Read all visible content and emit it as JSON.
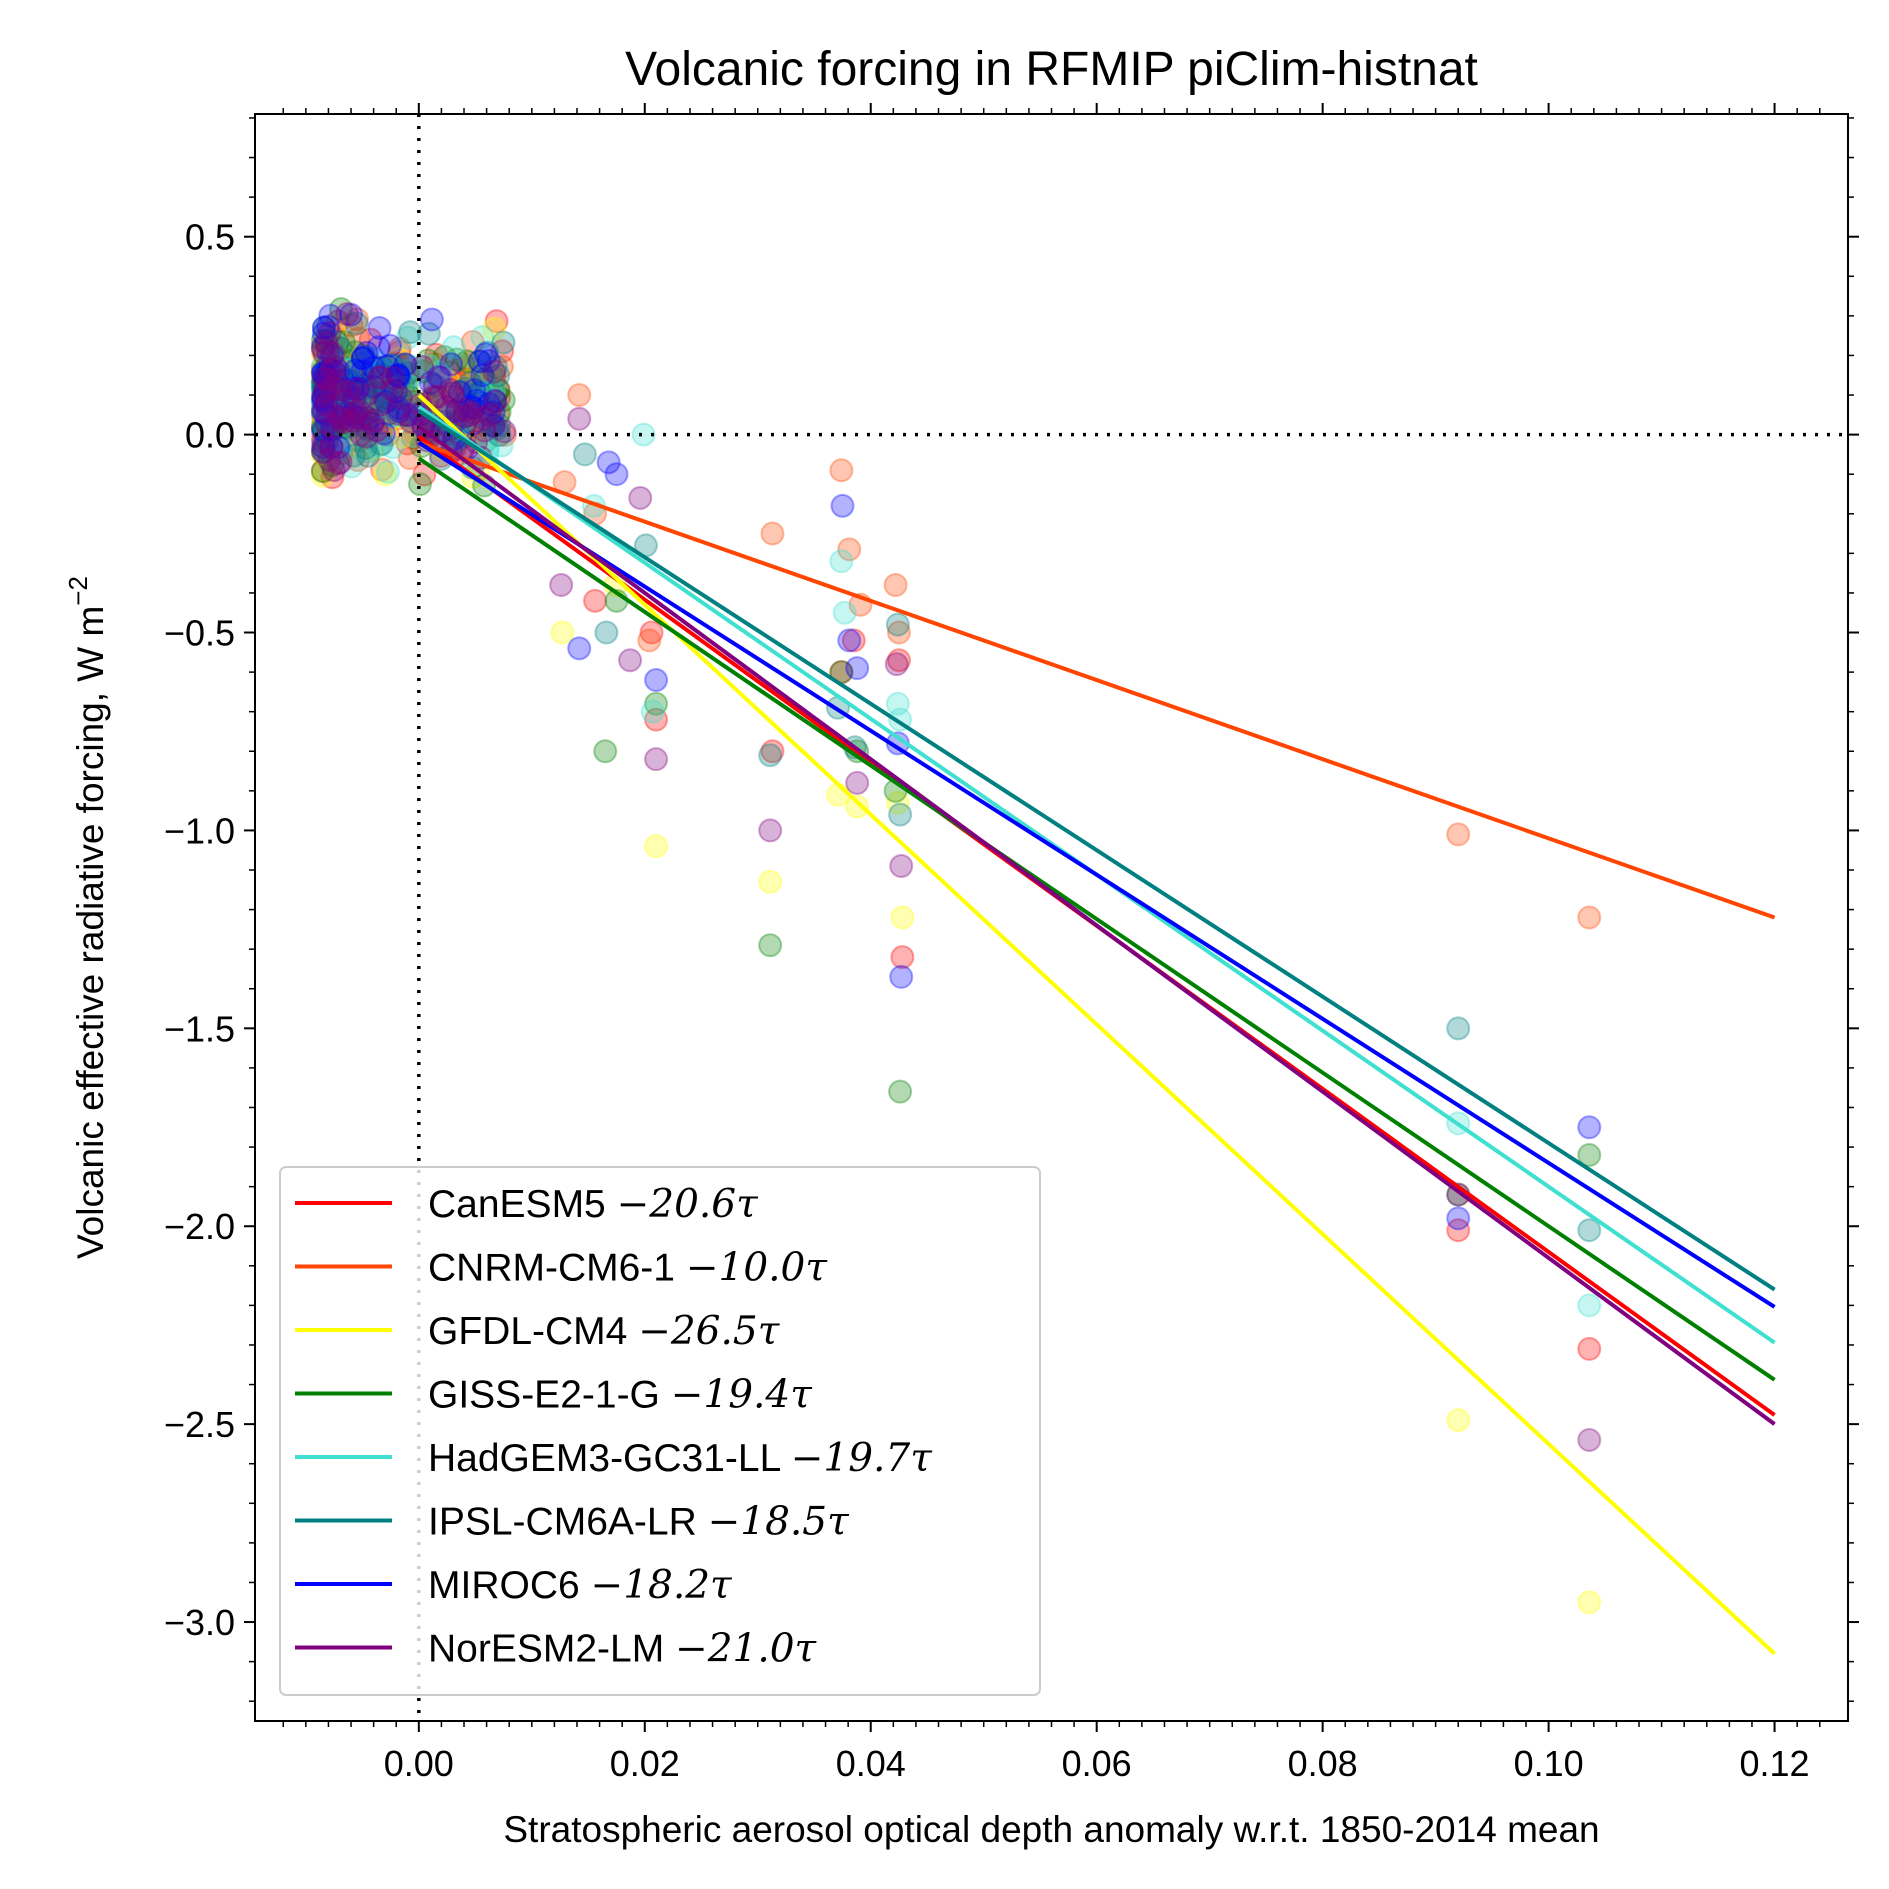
{
  "chart_data": {
    "type": "scatter",
    "title": "Volcanic forcing in RFMIP piClim-histnat",
    "xlabel": "Stratospheric aerosol optical depth anomaly w.r.t. 1850-2014 mean",
    "ylabel_main": "Volcanic effective radiative forcing, W m",
    "ylabel_sup": "−2",
    "xlim": [
      -0.0145,
      0.1265
    ],
    "ylim": [
      -3.25,
      0.81
    ],
    "xticks": [
      0.0,
      0.02,
      0.04,
      0.06,
      0.08,
      0.1,
      0.12
    ],
    "xtick_labels": [
      "0.00",
      "0.02",
      "0.04",
      "0.06",
      "0.08",
      "0.10",
      "0.12"
    ],
    "yticks": [
      0.5,
      0.0,
      -0.5,
      -1.0,
      -1.5,
      -2.0,
      -2.5,
      -3.0
    ],
    "ytick_labels": [
      "0.5",
      "0.0",
      "−0.5",
      "−1.0",
      "−1.5",
      "−2.0",
      "−2.5",
      "−3.0"
    ],
    "reference_lines": {
      "x": 0,
      "y": 0,
      "style": "dotted"
    },
    "legend_position": "lower-left",
    "tau_symbol": "τ",
    "series": [
      {
        "name": "CanESM5",
        "slope_label": "−20.6",
        "color": "#ff0000",
        "slope": -20.6,
        "intercept": -0.005,
        "scatter_x": [
          0.0156,
          0.0206,
          0.021,
          0.0313,
          0.0374,
          0.0385,
          0.0425,
          0.0428,
          0.092,
          0.1036
        ],
        "scatter_y": [
          -0.42,
          -0.5,
          -0.72,
          -0.8,
          -0.6,
          -0.52,
          -0.57,
          -1.32,
          -2.01,
          -2.31
        ]
      },
      {
        "name": "CNRM-CM6-1",
        "slope_label": "−10.0",
        "color": "#ff4500",
        "slope": -10.0,
        "intercept": -0.02,
        "scatter_x": [
          0.0142,
          0.0129,
          0.0156,
          0.0204,
          0.0313,
          0.0374,
          0.0381,
          0.0391,
          0.0422,
          0.0425,
          0.092,
          0.1036
        ],
        "scatter_y": [
          0.1,
          -0.12,
          -0.2,
          -0.52,
          -0.25,
          -0.09,
          -0.29,
          -0.43,
          -0.38,
          -0.5,
          -1.01,
          -1.22
        ]
      },
      {
        "name": "GFDL-CM4",
        "slope_label": "−26.5",
        "color": "#ffff00",
        "slope": -26.5,
        "intercept": 0.1,
        "scatter_x": [
          0.0127,
          0.0174,
          0.021,
          0.0311,
          0.0371,
          0.0388,
          0.0424,
          0.0428,
          0.092,
          0.1036
        ],
        "scatter_y": [
          -0.5,
          -0.38,
          -1.04,
          -1.13,
          -0.91,
          -0.94,
          -0.93,
          -1.22,
          -2.49,
          -2.95
        ]
      },
      {
        "name": "GISS-E2-1-G",
        "slope_label": "−19.4",
        "color": "#008000",
        "slope": -19.4,
        "intercept": -0.06,
        "scatter_x": [
          0.0165,
          0.0175,
          0.021,
          0.0311,
          0.0374,
          0.0388,
          0.0422,
          0.0426,
          0.092,
          0.1036
        ],
        "scatter_y": [
          -0.8,
          -0.42,
          -0.68,
          -1.29,
          -0.6,
          -0.8,
          -0.9,
          -1.66,
          -1.92,
          -1.82
        ]
      },
      {
        "name": "HadGEM3-GC31-LL",
        "slope_label": "−19.7",
        "color": "#40e0d0",
        "slope": -19.7,
        "intercept": 0.07,
        "scatter_x": [
          0.0155,
          0.0199,
          0.0207,
          0.0374,
          0.0377,
          0.0424,
          0.0426,
          0.092,
          0.1036
        ],
        "scatter_y": [
          -0.18,
          0.0,
          -0.7,
          -0.32,
          -0.45,
          -0.68,
          -0.72,
          -1.74,
          -2.2
        ]
      },
      {
        "name": "IPSL-CM6A-LR",
        "slope_label": "−18.5",
        "color": "#008080",
        "slope": -18.5,
        "intercept": 0.06,
        "scatter_x": [
          0.0147,
          0.0166,
          0.0201,
          0.0311,
          0.0371,
          0.0386,
          0.0424,
          0.0426,
          0.092,
          0.1036
        ],
        "scatter_y": [
          -0.05,
          -0.5,
          -0.28,
          -0.81,
          -0.69,
          -0.79,
          -0.48,
          -0.96,
          -1.5,
          -2.01
        ]
      },
      {
        "name": "MIROC6",
        "slope_label": "−18.2",
        "color": "#0000ff",
        "slope": -18.2,
        "intercept": -0.02,
        "scatter_x": [
          0.0142,
          0.0168,
          0.0175,
          0.021,
          0.0375,
          0.0381,
          0.0388,
          0.0424,
          0.0427,
          0.092,
          0.1036
        ],
        "scatter_y": [
          -0.54,
          -0.07,
          -0.1,
          -0.62,
          -0.18,
          -0.52,
          -0.59,
          -0.78,
          -1.37,
          -1.98,
          -1.75
        ]
      },
      {
        "name": "NorESM2-LM",
        "slope_label": "−21.0",
        "color": "#800080",
        "slope": -21.0,
        "intercept": 0.02,
        "scatter_x": [
          0.0142,
          0.0126,
          0.0187,
          0.0196,
          0.021,
          0.0311,
          0.0388,
          0.0423,
          0.0427,
          0.092,
          0.1036
        ],
        "scatter_y": [
          0.04,
          -0.38,
          -0.57,
          -0.16,
          -0.82,
          -1.0,
          -0.88,
          -0.58,
          -1.09,
          -1.92,
          -2.54
        ]
      }
    ],
    "cluster_note_x_range": [
      -0.0085,
      0.0095
    ],
    "cluster_note_y_range": [
      -0.6,
      0.63
    ]
  }
}
